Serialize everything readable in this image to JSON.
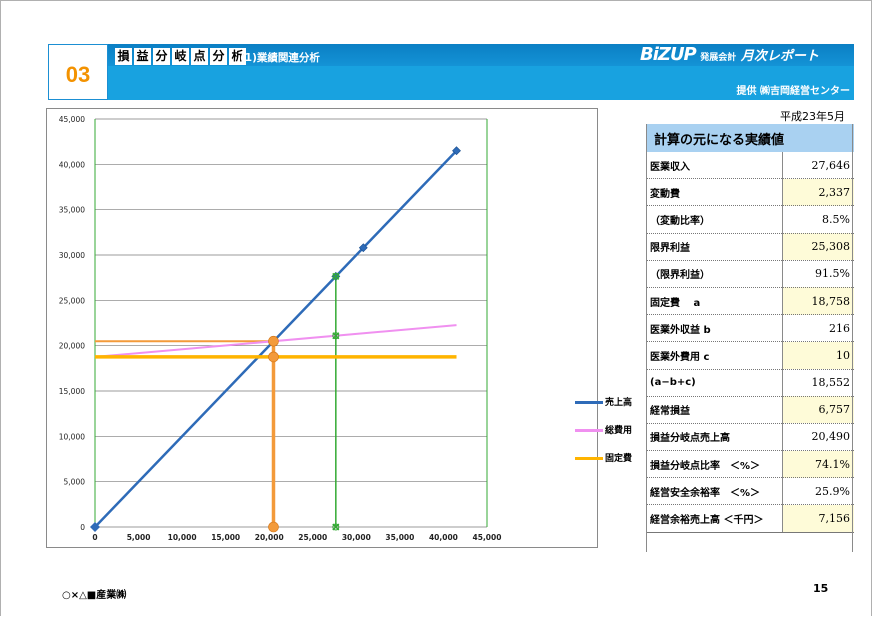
{
  "header": {
    "section_number": "03",
    "title_chars": [
      "損",
      "益",
      "分",
      "岐",
      "点",
      "分",
      "析"
    ],
    "subtitle": "(1)業績関連分析",
    "brand_logo": "BiZUP",
    "brand_small": "発展会計",
    "brand_report": "月次レポート",
    "provider": "提供 ㈱吉岡経営センター"
  },
  "date": "平成23年5月",
  "table": {
    "heading": "計算の元になる実績値",
    "rows": [
      {
        "label": "医業収入",
        "value": "27,646"
      },
      {
        "label": "変動費",
        "value": "2,337"
      },
      {
        "label": "（変動比率）",
        "value": "8.5%"
      },
      {
        "label": "限界利益",
        "value": "25,308"
      },
      {
        "label": "（限界利益）",
        "value": "91.5%"
      },
      {
        "label": "固定費　 a",
        "value": "18,758"
      },
      {
        "label": "医業外収益 b",
        "value": "216"
      },
      {
        "label": "医業外費用 c",
        "value": "10"
      },
      {
        "label": "(a−b+c)",
        "value": "18,552"
      },
      {
        "label": "経常損益",
        "value": "6,757"
      },
      {
        "label": "損益分岐点売上高",
        "value": "20,490"
      },
      {
        "label": "損益分岐点比率　＜%＞",
        "value": "74.1%"
      },
      {
        "label": "経営安全余裕率　＜%＞",
        "value": "25.9%"
      },
      {
        "label": "経営余裕売上高 ＜千円＞",
        "value": "7,156"
      }
    ]
  },
  "footer": {
    "company": "○×△■産業㈱",
    "page": "15"
  },
  "chart_data": {
    "type": "line",
    "xlim": [
      0,
      45000
    ],
    "ylim": [
      0,
      45000
    ],
    "x_ticks": [
      "0",
      "5,000",
      "10,000",
      "15,000",
      "20,000",
      "25,000",
      "30,000",
      "35,000",
      "40,000",
      "45,000"
    ],
    "y_ticks": [
      "0",
      "5,000",
      "10,000",
      "15,000",
      "20,000",
      "25,000",
      "30,000",
      "35,000",
      "40,000",
      "45,000"
    ],
    "grid": "horizontal",
    "legend_position": "right",
    "series": [
      {
        "name": "売上高",
        "color": "#2e6bb8",
        "marker": "diamond",
        "points": [
          [
            0,
            0
          ],
          [
            20490,
            20490
          ],
          [
            27646,
            27646
          ],
          [
            30800,
            30800
          ],
          [
            41500,
            41500
          ]
        ]
      },
      {
        "name": "総費用",
        "color": "#f090f0",
        "marker": "none",
        "points": [
          [
            0,
            18758
          ],
          [
            41500,
            22267
          ]
        ]
      },
      {
        "name": "固定費",
        "color": "#ffb400",
        "marker": "none",
        "points": [
          [
            0,
            18758
          ],
          [
            41500,
            18758
          ]
        ]
      }
    ],
    "annotations": [
      {
        "name": "break-even-line",
        "color": "#f39a3a",
        "points": [
          [
            20490,
            0
          ],
          [
            20490,
            20490
          ]
        ],
        "markers": [
          [
            20490,
            0
          ],
          [
            20490,
            18758
          ],
          [
            20490,
            20490
          ]
        ]
      },
      {
        "name": "actual-sales-line",
        "color": "#33aa33",
        "points": [
          [
            27646,
            0
          ],
          [
            27646,
            27646
          ]
        ],
        "markers": [
          [
            27646,
            0
          ],
          [
            27646,
            21095
          ],
          [
            27646,
            27646
          ]
        ]
      }
    ]
  }
}
